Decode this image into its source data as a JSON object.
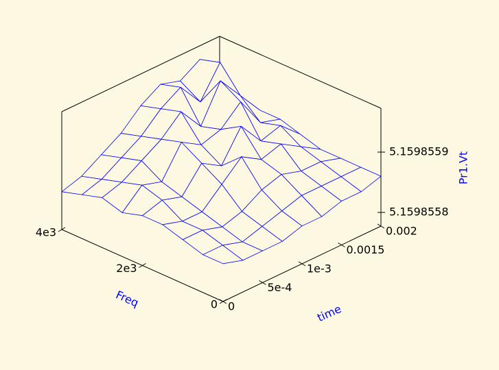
{
  "chart_data": {
    "type": "surface",
    "xlabel": "Freq",
    "ylabel": "time",
    "zlabel": "Pr1.Vt",
    "color": "#0000ff",
    "xlim": [
      0,
      4000
    ],
    "xticks": [
      0,
      {
        "value": 2000,
        "label": "2e3"
      },
      {
        "value": 4000,
        "label": "4e3"
      }
    ],
    "ylim": [
      0,
      0.002
    ],
    "yticks": [
      0,
      {
        "value": 0.0005,
        "label": "5e-4"
      },
      {
        "value": 0.001,
        "label": "1e-3"
      },
      0.0015,
      0.002
    ],
    "zlim": [
      5.1598557773,
      5.1598559727
    ],
    "zticks": [
      5.1598558,
      5.1598559
    ],
    "x": [
      0,
      500,
      1000,
      1500,
      2000,
      2500,
      3000,
      3500,
      4000
    ],
    "y": [
      0,
      0.00025,
      0.0005,
      0.00075,
      0.001,
      0.00125,
      0.0015,
      0.00175,
      0.002
    ],
    "z": [
      [
        5.15985584,
        5.15985583,
        5.15985583,
        5.15985583,
        5.15985584,
        5.15985584,
        5.15985585,
        5.15985585,
        5.15985586
      ],
      [
        5.15985584,
        5.15985584,
        5.15985583,
        5.15985584,
        5.15985585,
        5.15985586,
        5.15985586,
        5.15985586,
        5.15985586
      ],
      [
        5.15985585,
        5.15985585,
        5.15985584,
        5.15985585,
        5.15985587,
        5.15985588,
        5.15985587,
        5.15985587,
        5.15985586
      ],
      [
        5.15985586,
        5.15985585,
        5.15985585,
        5.15985588,
        5.15985591,
        5.15985589,
        5.1598559,
        5.15985588,
        5.15985586
      ],
      [
        5.15985586,
        5.15985587,
        5.15985586,
        5.1598559,
        5.15985588,
        5.15985593,
        5.15985589,
        5.1598559,
        5.15985587
      ],
      [
        5.15985585,
        5.15985588,
        5.15985587,
        5.15985592,
        5.1598559,
        5.15985591,
        5.15985594,
        5.15985589,
        5.15985588
      ],
      [
        5.15985586,
        5.15985587,
        5.15985589,
        5.15985591,
        5.15985594,
        5.1598559,
        5.15985596,
        5.15985592,
        5.15985588
      ],
      [
        5.15985585,
        5.15985586,
        5.15985588,
        5.1598559,
        5.15985593,
        5.15985595,
        5.15985591,
        5.15985596,
        5.15985589
      ],
      [
        5.15985584,
        5.15985585,
        5.15985587,
        5.15985589,
        5.15985592,
        5.15985594,
        5.15985593,
        5.15985595,
        5.15985589
      ]
    ]
  }
}
